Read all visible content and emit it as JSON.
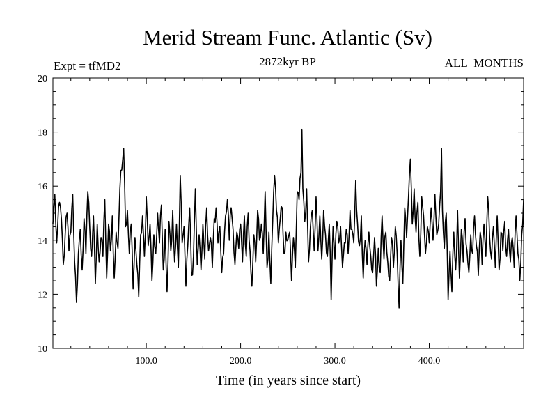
{
  "chart_data": {
    "type": "line",
    "title": "Merid Stream Func. Atlantic (Sv)",
    "subtitle_left": "Expt = tfMD2",
    "subtitle_center": "2872kyr BP",
    "subtitle_right": "ALL_MONTHS",
    "xlabel": "Time (in years since start)",
    "ylabel": "",
    "xlim": [
      1,
      500
    ],
    "ylim": [
      10,
      20
    ],
    "x_ticks": [
      100,
      200,
      300,
      400
    ],
    "x_tick_labels": [
      "100.0",
      "200.0",
      "300.0",
      "400.0"
    ],
    "y_ticks": [
      10,
      12,
      14,
      16,
      18,
      20
    ],
    "y_tick_labels": [
      "10",
      "12",
      "14",
      "16",
      "18",
      "20"
    ],
    "series": [
      {
        "name": "Merid Stream Func. Atlantic",
        "anchors": [
          [
            1,
            14.6
          ],
          [
            3,
            15.7
          ],
          [
            5,
            13.9
          ],
          [
            8,
            15.4
          ],
          [
            10,
            14.8
          ],
          [
            12,
            13.1
          ],
          [
            14,
            14.2
          ],
          [
            16,
            15.0
          ],
          [
            18,
            13.6
          ],
          [
            20,
            14.3
          ],
          [
            22,
            15.7
          ],
          [
            24,
            13.2
          ],
          [
            26,
            11.7
          ],
          [
            28,
            13.5
          ],
          [
            30,
            14.4
          ],
          [
            32,
            12.9
          ],
          [
            34,
            14.8
          ],
          [
            36,
            13.5
          ],
          [
            38,
            15.8
          ],
          [
            40,
            14.5
          ],
          [
            42,
            13.4
          ],
          [
            44,
            14.9
          ],
          [
            46,
            12.4
          ],
          [
            48,
            14.6
          ],
          [
            50,
            13.2
          ],
          [
            52,
            14.1
          ],
          [
            54,
            13.4
          ],
          [
            56,
            15.5
          ],
          [
            58,
            12.6
          ],
          [
            60,
            14.6
          ],
          [
            62,
            13.6
          ],
          [
            64,
            14.9
          ],
          [
            66,
            12.6
          ],
          [
            68,
            14.3
          ],
          [
            70,
            13.7
          ],
          [
            72,
            15.9
          ],
          [
            74,
            16.6
          ],
          [
            76,
            17.4
          ],
          [
            78,
            14.5
          ],
          [
            80,
            15.1
          ],
          [
            82,
            13.5
          ],
          [
            84,
            14.6
          ],
          [
            86,
            12.2
          ],
          [
            88,
            14.1
          ],
          [
            90,
            13.1
          ],
          [
            92,
            11.9
          ],
          [
            94,
            14.2
          ],
          [
            96,
            14.9
          ],
          [
            98,
            13.4
          ],
          [
            100,
            15.6
          ],
          [
            102,
            13.8
          ],
          [
            104,
            14.6
          ],
          [
            106,
            12.5
          ],
          [
            108,
            14.2
          ],
          [
            110,
            13.5
          ],
          [
            112,
            15.0
          ],
          [
            114,
            13.9
          ],
          [
            116,
            15.3
          ],
          [
            118,
            12.9
          ],
          [
            120,
            14.4
          ],
          [
            122,
            12.1
          ],
          [
            124,
            14.7
          ],
          [
            126,
            13.6
          ],
          [
            128,
            15.1
          ],
          [
            130,
            13.2
          ],
          [
            132,
            14.6
          ],
          [
            134,
            13.0
          ],
          [
            136,
            16.4
          ],
          [
            138,
            13.9
          ],
          [
            140,
            14.5
          ],
          [
            142,
            12.3
          ],
          [
            144,
            13.8
          ],
          [
            146,
            15.2
          ],
          [
            148,
            12.7
          ],
          [
            150,
            13.4
          ],
          [
            152,
            15.9
          ],
          [
            154,
            13.1
          ],
          [
            156,
            14.2
          ],
          [
            158,
            12.9
          ],
          [
            160,
            14.6
          ],
          [
            162,
            13.3
          ],
          [
            164,
            15.2
          ],
          [
            166,
            13.6
          ],
          [
            168,
            14.1
          ],
          [
            170,
            13.0
          ],
          [
            172,
            14.8
          ],
          [
            174,
            15.2
          ],
          [
            176,
            13.9
          ],
          [
            178,
            14.5
          ],
          [
            180,
            12.8
          ],
          [
            182,
            13.5
          ],
          [
            184,
            14.9
          ],
          [
            186,
            15.5
          ],
          [
            188,
            14.0
          ],
          [
            190,
            15.2
          ],
          [
            192,
            14.4
          ],
          [
            194,
            13.1
          ],
          [
            196,
            14.3
          ],
          [
            198,
            13.7
          ],
          [
            200,
            14.6
          ],
          [
            202,
            13.2
          ],
          [
            204,
            14.9
          ],
          [
            206,
            13.4
          ],
          [
            208,
            15.0
          ],
          [
            210,
            13.6
          ],
          [
            212,
            12.3
          ],
          [
            214,
            14.2
          ],
          [
            216,
            13.2
          ],
          [
            218,
            15.1
          ],
          [
            220,
            14.0
          ],
          [
            222,
            14.6
          ],
          [
            224,
            13.5
          ],
          [
            226,
            15.8
          ],
          [
            228,
            13.0
          ],
          [
            230,
            14.3
          ],
          [
            232,
            12.4
          ],
          [
            234,
            14.7
          ],
          [
            236,
            16.4
          ],
          [
            238,
            15.1
          ],
          [
            240,
            13.9
          ],
          [
            242,
            14.8
          ],
          [
            244,
            15.2
          ],
          [
            246,
            13.5
          ],
          [
            248,
            14.3
          ],
          [
            250,
            14.0
          ],
          [
            252,
            14.3
          ],
          [
            254,
            12.5
          ],
          [
            256,
            14.1
          ],
          [
            258,
            13.0
          ],
          [
            260,
            15.8
          ],
          [
            262,
            15.5
          ],
          [
            264,
            16.5
          ],
          [
            265,
            18.1
          ],
          [
            266,
            15.9
          ],
          [
            268,
            14.7
          ],
          [
            270,
            15.9
          ],
          [
            272,
            13.2
          ],
          [
            274,
            14.5
          ],
          [
            276,
            15.1
          ],
          [
            278,
            13.6
          ],
          [
            280,
            15.6
          ],
          [
            282,
            13.6
          ],
          [
            284,
            14.9
          ],
          [
            286,
            13.3
          ],
          [
            288,
            15.1
          ],
          [
            290,
            14.2
          ],
          [
            292,
            13.4
          ],
          [
            294,
            14.6
          ],
          [
            296,
            11.8
          ],
          [
            298,
            14.5
          ],
          [
            300,
            13.3
          ],
          [
            302,
            14.7
          ],
          [
            304,
            13.9
          ],
          [
            306,
            14.5
          ],
          [
            308,
            13.0
          ],
          [
            310,
            13.9
          ],
          [
            312,
            14.4
          ],
          [
            314,
            13.5
          ],
          [
            316,
            15.1
          ],
          [
            318,
            14.4
          ],
          [
            320,
            13.9
          ],
          [
            322,
            16.2
          ],
          [
            324,
            14.6
          ],
          [
            326,
            13.8
          ],
          [
            328,
            14.9
          ],
          [
            330,
            12.6
          ],
          [
            332,
            14.0
          ],
          [
            334,
            13.1
          ],
          [
            336,
            14.3
          ],
          [
            338,
            13.4
          ],
          [
            340,
            12.8
          ],
          [
            342,
            14.1
          ],
          [
            344,
            12.3
          ],
          [
            346,
            13.7
          ],
          [
            348,
            12.8
          ],
          [
            350,
            14.9
          ],
          [
            352,
            13.3
          ],
          [
            354,
            14.3
          ],
          [
            356,
            13.2
          ],
          [
            358,
            12.5
          ],
          [
            360,
            14.1
          ],
          [
            362,
            13.0
          ],
          [
            364,
            14.5
          ],
          [
            366,
            13.5
          ],
          [
            368,
            11.5
          ],
          [
            370,
            14.0
          ],
          [
            372,
            12.4
          ],
          [
            374,
            15.2
          ],
          [
            376,
            14.1
          ],
          [
            378,
            15.6
          ],
          [
            380,
            17.0
          ],
          [
            382,
            14.6
          ],
          [
            384,
            15.9
          ],
          [
            386,
            14.3
          ],
          [
            388,
            15.4
          ],
          [
            390,
            13.4
          ],
          [
            392,
            15.6
          ],
          [
            394,
            14.9
          ],
          [
            396,
            13.5
          ],
          [
            398,
            14.5
          ],
          [
            400,
            13.9
          ],
          [
            402,
            15.2
          ],
          [
            404,
            14.0
          ],
          [
            406,
            15.7
          ],
          [
            408,
            14.2
          ],
          [
            410,
            14.6
          ],
          [
            412,
            15.8
          ],
          [
            413,
            17.4
          ],
          [
            414,
            15.1
          ],
          [
            416,
            13.7
          ],
          [
            418,
            15.0
          ],
          [
            420,
            11.8
          ],
          [
            422,
            13.6
          ],
          [
            424,
            12.1
          ],
          [
            426,
            14.3
          ],
          [
            428,
            12.9
          ],
          [
            430,
            15.1
          ],
          [
            432,
            12.6
          ],
          [
            434,
            14.4
          ],
          [
            436,
            13.2
          ],
          [
            438,
            14.8
          ],
          [
            440,
            13.6
          ],
          [
            442,
            12.8
          ],
          [
            444,
            14.2
          ],
          [
            446,
            13.5
          ],
          [
            448,
            14.9
          ],
          [
            450,
            13.8
          ],
          [
            452,
            12.7
          ],
          [
            454,
            14.3
          ],
          [
            456,
            13.1
          ],
          [
            458,
            14.6
          ],
          [
            460,
            13.4
          ],
          [
            462,
            15.6
          ],
          [
            464,
            14.1
          ],
          [
            466,
            13.3
          ],
          [
            468,
            14.5
          ],
          [
            470,
            13.0
          ],
          [
            472,
            14.9
          ],
          [
            474,
            12.9
          ],
          [
            476,
            14.3
          ],
          [
            478,
            13.6
          ],
          [
            480,
            14.7
          ],
          [
            482,
            13.4
          ],
          [
            484,
            14.4
          ],
          [
            486,
            13.2
          ],
          [
            488,
            14.1
          ],
          [
            490,
            13.0
          ],
          [
            492,
            14.9
          ],
          [
            494,
            13.5
          ],
          [
            496,
            12.5
          ],
          [
            498,
            14.2
          ],
          [
            500,
            15.5
          ]
        ]
      }
    ]
  }
}
